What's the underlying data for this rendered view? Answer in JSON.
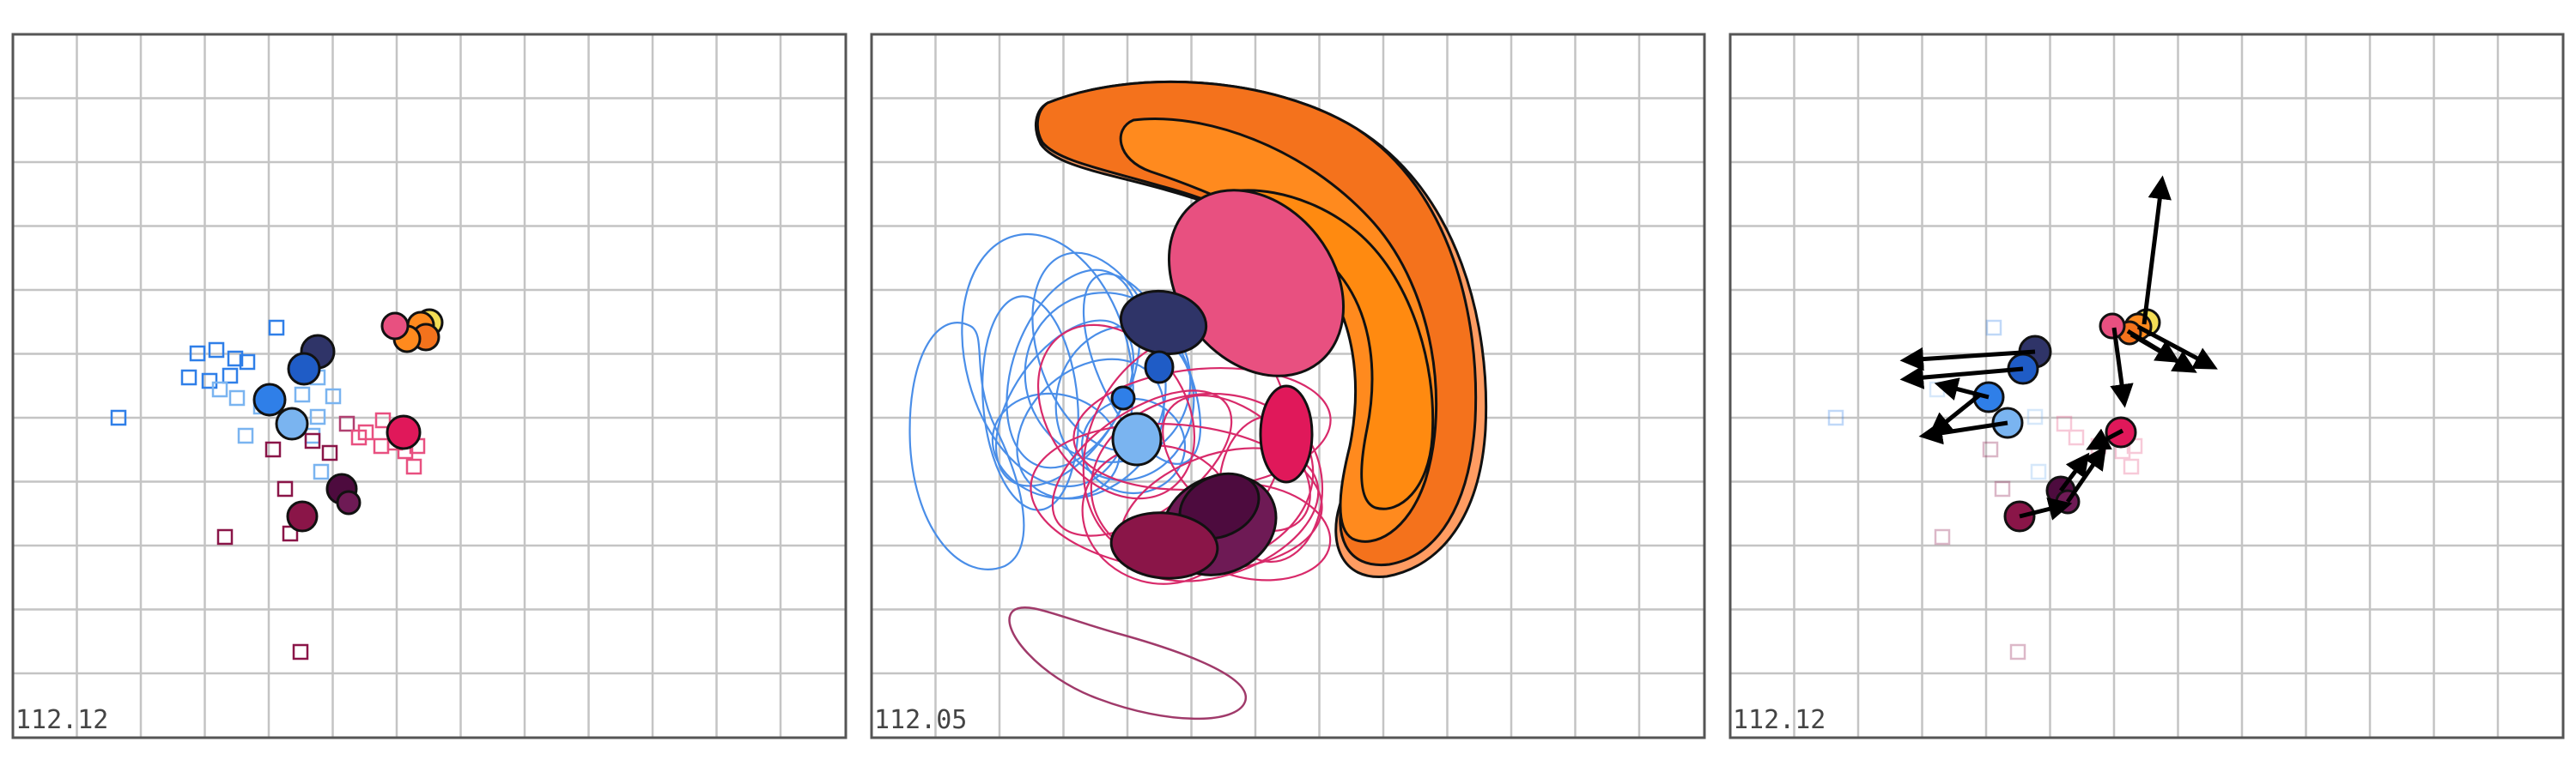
{
  "panels": [
    {
      "label": "112.12"
    },
    {
      "label": "112.05"
    },
    {
      "label": "112.12"
    }
  ],
  "colors": {
    "grid": "#c4c4c4",
    "frame": "#555555",
    "outline": "#111111",
    "background": "#ffffff",
    "blue_light": "#7ab4f0",
    "blue_mid": "#2f7fe8",
    "blue_dark": "#1f5cc6",
    "navy": "#2f3468",
    "pink": "#e85080",
    "crimson": "#e0185a",
    "maroon": "#8a1548",
    "dark_purple": "#4d0b3e",
    "plum": "#6e1a55",
    "orange": "#ff8a1e",
    "orange_deep": "#f4721c",
    "orange_light": "#ff9c62",
    "yellow": "#f3dd55"
  }
}
